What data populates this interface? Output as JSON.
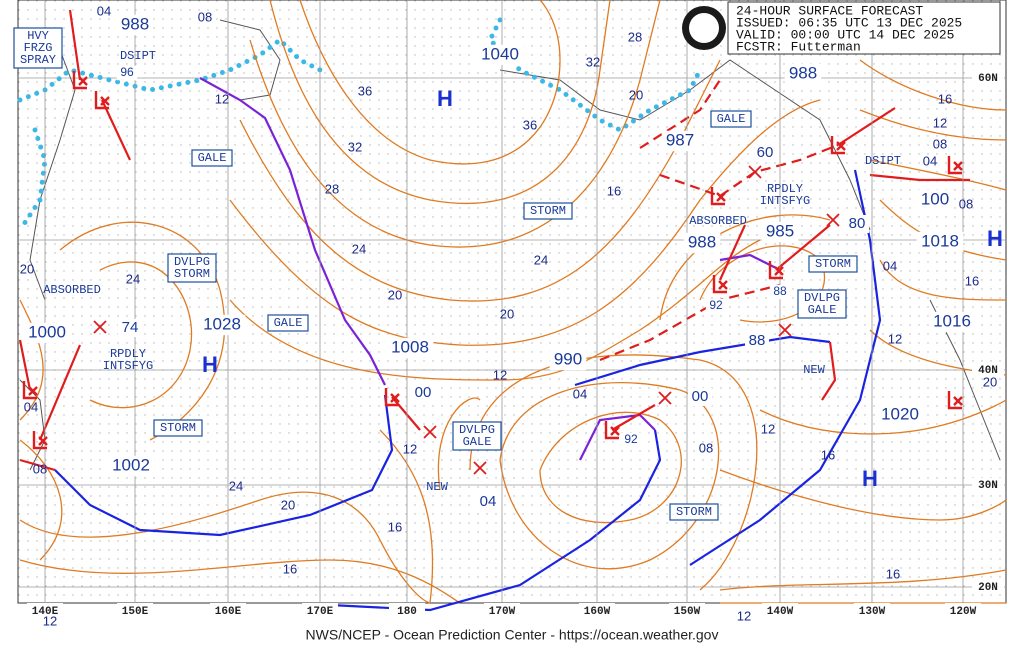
{
  "header": {
    "lines": [
      "24-HOUR SURFACE FORECAST",
      "ISSUED: 06:35 UTC 13 DEC 2025",
      "VALID:  00:00 UTC 14 DEC 2025",
      "FCSTR:  Futterman"
    ]
  },
  "footer": "NWS/NCEP - Ocean Prediction Center - https://ocean.weather.gov",
  "longitudes": [
    "140E",
    "150E",
    "160E",
    "170E",
    "180",
    "170W",
    "160W",
    "150W",
    "140W",
    "130W",
    "120W"
  ],
  "latitudes": [
    "60N",
    "40N",
    "30N",
    "20N"
  ],
  "boxed_labels": [
    {
      "lines": [
        "HVY",
        "FRZG",
        "SPRAY"
      ]
    },
    {
      "lines": [
        "GALE"
      ]
    },
    {
      "lines": [
        "DVLPG",
        "STORM"
      ]
    },
    {
      "lines": [
        "GALE"
      ]
    },
    {
      "lines": [
        "STORM"
      ]
    },
    {
      "lines": [
        "STORM"
      ]
    },
    {
      "lines": [
        "GALE"
      ]
    },
    {
      "lines": [
        "STORM"
      ]
    },
    {
      "lines": [
        "DVLPG",
        "GALE"
      ]
    },
    {
      "lines": [
        "DVLPG",
        "GALE"
      ]
    },
    {
      "lines": [
        "STORM"
      ]
    }
  ],
  "labels": [
    {
      "lines": [
        "DSIPT"
      ]
    },
    {
      "lines": [
        "ABSORBED"
      ]
    },
    {
      "lines": [
        "RPDLY",
        "INTSFYG"
      ]
    },
    {
      "lines": [
        "NEW"
      ]
    },
    {
      "lines": [
        "ABSORBED"
      ]
    },
    {
      "lines": [
        "RPDLY",
        "INTSFYG"
      ]
    },
    {
      "lines": [
        "NEW"
      ]
    },
    {
      "lines": [
        "DSIPT"
      ]
    }
  ],
  "pressure_values": [
    "988",
    "1040",
    "987",
    "988",
    "60",
    "100",
    "80",
    "1018",
    "988",
    "985",
    "1000",
    "74",
    "1028",
    "1008",
    "1016",
    "990",
    "88",
    "00",
    "00",
    "1020",
    "1002",
    "04",
    "96",
    "92",
    "92",
    "88"
  ],
  "highs": [
    "H",
    "H",
    "H",
    "H"
  ],
  "isobar_labels": [
    "04",
    "08",
    "28",
    "32",
    "36",
    "32",
    "28",
    "24",
    "20",
    "24",
    "20",
    "12",
    "16",
    "20",
    "36",
    "16",
    "12",
    "08",
    "04",
    "08",
    "04",
    "16",
    "12",
    "20",
    "12",
    "16",
    "08",
    "16",
    "12",
    "16",
    "24",
    "20",
    "16",
    "12",
    "04",
    "08",
    "20",
    "24",
    "12",
    "04",
    "12"
  ]
}
